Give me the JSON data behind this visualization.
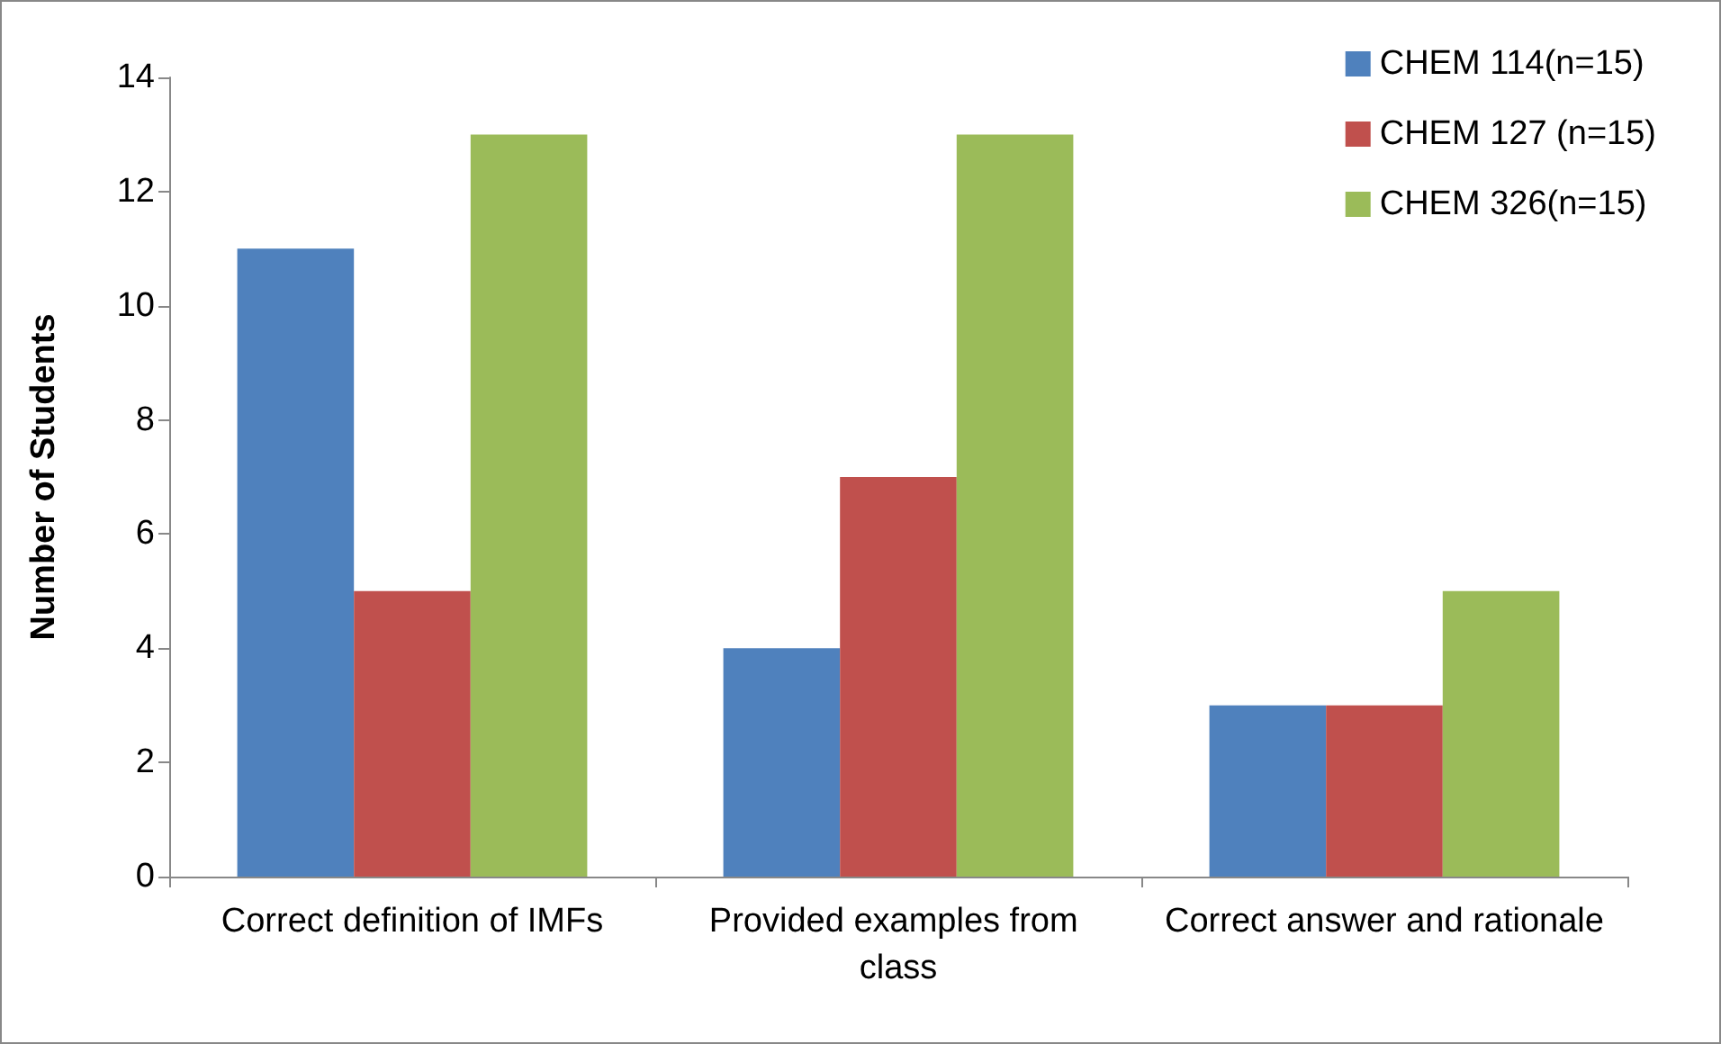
{
  "chart_data": {
    "type": "bar",
    "ylabel": "Number of Students",
    "categories": [
      "Correct definition of IMFs",
      "Provided examples from class",
      "Correct answer and rationale"
    ],
    "series": [
      {
        "name": "CHEM 114(n=15)",
        "color": "#4f81bd",
        "values": [
          11,
          4,
          3
        ]
      },
      {
        "name": "CHEM 127 (n=15)",
        "color": "#c0504d",
        "values": [
          5,
          7,
          3
        ]
      },
      {
        "name": "CHEM 326(n=15)",
        "color": "#9bbb59",
        "values": [
          13,
          13,
          5
        ]
      }
    ],
    "ylim": [
      0,
      14
    ],
    "yticks": [
      0,
      2,
      4,
      6,
      8,
      10,
      12,
      14
    ],
    "grid": false,
    "legend": "top right"
  }
}
